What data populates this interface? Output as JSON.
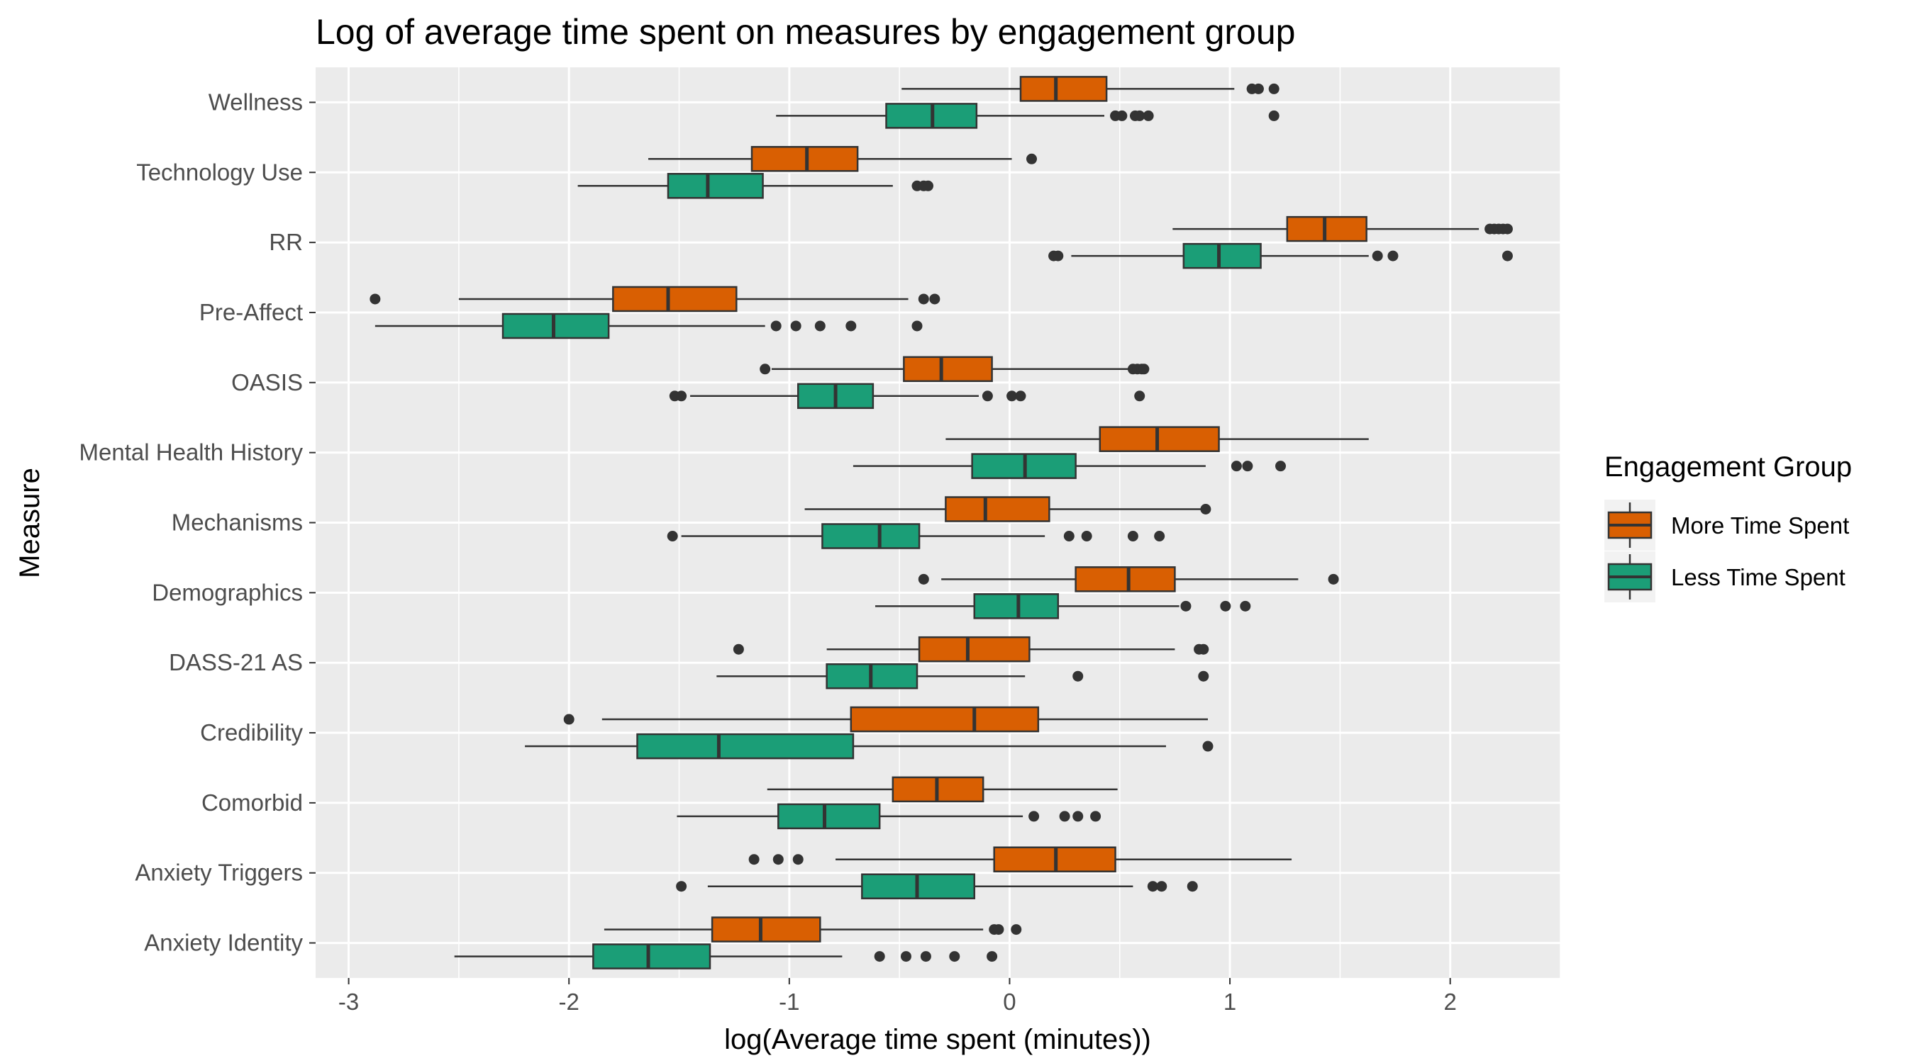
{
  "chart_data": {
    "type": "boxplot",
    "title": "Log of average time spent on measures by engagement group",
    "xlabel": "log(Average time spent (minutes))",
    "ylabel": "Measure",
    "xlim": [
      -3.15,
      2.5
    ],
    "xticks": [
      -3,
      -2,
      -1,
      0,
      1,
      2
    ],
    "xtick_labels": [
      "-3",
      "-2",
      "-1",
      "0",
      "1",
      "2"
    ],
    "grid": true,
    "legend": {
      "title": "Engagement Group",
      "position": "right",
      "items": [
        {
          "label": "More Time Spent",
          "color": "#d95f02"
        },
        {
          "label": "Less Time Spent",
          "color": "#1b9e77"
        }
      ]
    },
    "categories": [
      "Anxiety Identity",
      "Anxiety Triggers",
      "Comorbid",
      "Credibility",
      "DASS-21 AS",
      "Demographics",
      "Mechanisms",
      "Mental Health History",
      "OASIS",
      "Pre-Affect",
      "RR",
      "Technology Use",
      "Wellness"
    ],
    "series": [
      {
        "name": "More Time Spent",
        "color": "#d95f02",
        "boxes": [
          {
            "category": "Anxiety Identity",
            "whisker_low": -1.84,
            "q1": -1.35,
            "median": -1.13,
            "q3": -0.86,
            "whisker_high": -0.12,
            "outliers": [
              -0.07,
              -0.05,
              0.03
            ]
          },
          {
            "category": "Anxiety Triggers",
            "whisker_low": -0.79,
            "q1": -0.07,
            "median": 0.21,
            "q3": 0.48,
            "whisker_high": 1.28,
            "outliers": [
              -1.16,
              -1.05,
              -0.96
            ]
          },
          {
            "category": "Comorbid",
            "whisker_low": -1.1,
            "q1": -0.53,
            "median": -0.33,
            "q3": -0.12,
            "whisker_high": 0.49,
            "outliers": []
          },
          {
            "category": "Credibility",
            "whisker_low": -1.85,
            "q1": -0.72,
            "median": -0.16,
            "q3": 0.13,
            "whisker_high": 0.9,
            "outliers": [
              -2.0
            ]
          },
          {
            "category": "DASS-21 AS",
            "whisker_low": -0.83,
            "q1": -0.41,
            "median": -0.19,
            "q3": 0.09,
            "whisker_high": 0.75,
            "outliers": [
              -1.23,
              0.86,
              0.88
            ]
          },
          {
            "category": "Demographics",
            "whisker_low": -0.31,
            "q1": 0.3,
            "median": 0.54,
            "q3": 0.75,
            "whisker_high": 1.31,
            "outliers": [
              -0.39,
              1.47
            ]
          },
          {
            "category": "Mechanisms",
            "whisker_low": -0.93,
            "q1": -0.29,
            "median": -0.11,
            "q3": 0.18,
            "whisker_high": 0.88,
            "outliers": [
              0.89
            ]
          },
          {
            "category": "Mental Health History",
            "whisker_low": -0.29,
            "q1": 0.41,
            "median": 0.67,
            "q3": 0.95,
            "whisker_high": 1.63,
            "outliers": []
          },
          {
            "category": "OASIS",
            "whisker_low": -1.08,
            "q1": -0.48,
            "median": -0.31,
            "q3": -0.08,
            "whisker_high": 0.55,
            "outliers": [
              -1.11,
              0.56,
              0.58,
              0.6,
              0.61
            ]
          },
          {
            "category": "Pre-Affect",
            "whisker_low": -2.5,
            "q1": -1.8,
            "median": -1.55,
            "q3": -1.24,
            "whisker_high": -0.46,
            "outliers": [
              -2.88,
              -0.39,
              -0.34
            ]
          },
          {
            "category": "RR",
            "whisker_low": 0.74,
            "q1": 1.26,
            "median": 1.43,
            "q3": 1.62,
            "whisker_high": 2.13,
            "outliers": [
              2.18,
              2.2,
              2.22,
              2.24,
              2.26
            ]
          },
          {
            "category": "Technology Use",
            "whisker_low": -1.64,
            "q1": -1.17,
            "median": -0.92,
            "q3": -0.69,
            "whisker_high": 0.01,
            "outliers": [
              0.1
            ]
          },
          {
            "category": "Wellness",
            "whisker_low": -0.49,
            "q1": 0.05,
            "median": 0.21,
            "q3": 0.44,
            "whisker_high": 1.02,
            "outliers": [
              1.1,
              1.13,
              1.2
            ]
          }
        ]
      },
      {
        "name": "Less Time Spent",
        "color": "#1b9e77",
        "boxes": [
          {
            "category": "Anxiety Identity",
            "whisker_low": -2.52,
            "q1": -1.89,
            "median": -1.64,
            "q3": -1.36,
            "whisker_high": -0.76,
            "outliers": [
              -0.59,
              -0.47,
              -0.38,
              -0.25,
              -0.08
            ]
          },
          {
            "category": "Anxiety Triggers",
            "whisker_low": -1.37,
            "q1": -0.67,
            "median": -0.42,
            "q3": -0.16,
            "whisker_high": 0.56,
            "outliers": [
              -1.49,
              0.65,
              0.69,
              0.83
            ]
          },
          {
            "category": "Comorbid",
            "whisker_low": -1.51,
            "q1": -1.05,
            "median": -0.84,
            "q3": -0.59,
            "whisker_high": 0.06,
            "outliers": [
              0.11,
              0.25,
              0.31,
              0.39
            ]
          },
          {
            "category": "Credibility",
            "whisker_low": -2.2,
            "q1": -1.69,
            "median": -1.32,
            "q3": -0.71,
            "whisker_high": 0.71,
            "outliers": [
              0.9
            ]
          },
          {
            "category": "DASS-21 AS",
            "whisker_low": -1.33,
            "q1": -0.83,
            "median": -0.63,
            "q3": -0.42,
            "whisker_high": 0.07,
            "outliers": [
              0.31,
              0.88
            ]
          },
          {
            "category": "Demographics",
            "whisker_low": -0.61,
            "q1": -0.16,
            "median": 0.04,
            "q3": 0.22,
            "whisker_high": 0.77,
            "outliers": [
              0.8,
              0.98,
              1.07
            ]
          },
          {
            "category": "Mechanisms",
            "whisker_low": -1.49,
            "q1": -0.85,
            "median": -0.59,
            "q3": -0.41,
            "whisker_high": 0.16,
            "outliers": [
              -1.53,
              0.27,
              0.35,
              0.56,
              0.68
            ]
          },
          {
            "category": "Mental Health History",
            "whisker_low": -0.71,
            "q1": -0.17,
            "median": 0.07,
            "q3": 0.3,
            "whisker_high": 0.89,
            "outliers": [
              1.03,
              1.08,
              1.23
            ]
          },
          {
            "category": "OASIS",
            "whisker_low": -1.45,
            "q1": -0.96,
            "median": -0.79,
            "q3": -0.62,
            "whisker_high": -0.14,
            "outliers": [
              -1.52,
              -1.49,
              -0.1,
              0.01,
              0.05,
              0.59
            ]
          },
          {
            "category": "Pre-Affect",
            "whisker_low": -2.88,
            "q1": -2.3,
            "median": -2.07,
            "q3": -1.82,
            "whisker_high": -1.11,
            "outliers": [
              -1.06,
              -0.97,
              -0.86,
              -0.72,
              -0.42
            ]
          },
          {
            "category": "RR",
            "whisker_low": 0.28,
            "q1": 0.79,
            "median": 0.95,
            "q3": 1.14,
            "whisker_high": 1.63,
            "outliers": [
              0.2,
              0.22,
              1.67,
              1.74,
              2.26
            ]
          },
          {
            "category": "Technology Use",
            "whisker_low": -1.96,
            "q1": -1.55,
            "median": -1.37,
            "q3": -1.12,
            "whisker_high": -0.53,
            "outliers": [
              -0.42,
              -0.39,
              -0.37
            ]
          },
          {
            "category": "Wellness",
            "whisker_low": -1.06,
            "q1": -0.56,
            "median": -0.35,
            "q3": -0.15,
            "whisker_high": 0.43,
            "outliers": [
              0.48,
              0.51,
              0.57,
              0.59,
              0.63,
              1.2
            ]
          }
        ]
      }
    ]
  }
}
